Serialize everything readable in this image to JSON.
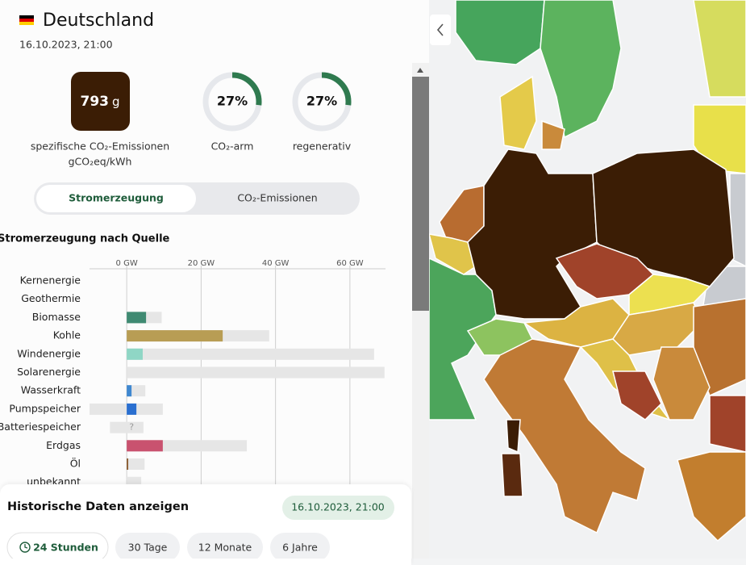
{
  "header": {
    "title": "Deutschland",
    "date": "16.10.2023, 21:00"
  },
  "intensity": {
    "value": "793",
    "unit": "g",
    "label": "spezifische CO₂-Emissionen",
    "sublabel": "gCO₂eq/kWh"
  },
  "metrics": [
    {
      "value": 27,
      "value_label": "27%",
      "label": "CO₂-arm"
    },
    {
      "value": 27,
      "value_label": "27%",
      "label": "regenerativ"
    }
  ],
  "tabs": [
    "Stromerzeugung",
    "CO₂-Emissionen"
  ],
  "chart_data": {
    "type": "bar",
    "orientation": "horizontal",
    "title": "Stromerzeugung nach Quelle",
    "categories": [
      "Kernenergie",
      "Geothermie",
      "Biomasse",
      "Kohle",
      "Windenergie",
      "Solarenergie",
      "Wasserkraft",
      "Pumpspeicher",
      "Batteriespeicher",
      "Erdgas",
      "Öl",
      "unbekannt"
    ],
    "production": [
      0,
      0,
      5.2,
      25.8,
      4.3,
      0,
      1.3,
      2.6,
      null,
      9.7,
      0.4,
      null
    ],
    "colors": [
      "#9b8ae0",
      "#a3463f",
      "#3f8a72",
      "#b89d54",
      "#8fd6c5",
      "#f4d03f",
      "#3f88d0",
      "#2a6fd0",
      "#7a7a7a",
      "#c9526f",
      "#8a5a2e",
      "#999999"
    ],
    "capacity": [
      null,
      null,
      9.4,
      38.3,
      66.5,
      69.3,
      5,
      9.7,
      4.5,
      32.3,
      4.8,
      3.9
    ],
    "storage_capacity": [
      null,
      null,
      null,
      null,
      null,
      null,
      null,
      -10,
      -4.5,
      null,
      null,
      null
    ],
    "capacity_color": "#e6e6e6",
    "annotation": {
      "category": "Batteriespeicher",
      "text": "?"
    },
    "xlim": [
      -10,
      70
    ],
    "xticks": [
      {
        "value": 0,
        "label": "0 GW"
      },
      {
        "value": 20,
        "label": "20 GW"
      },
      {
        "value": 40,
        "label": "40 GW"
      },
      {
        "value": 60,
        "label": "60 GW"
      }
    ],
    "grid": true
  },
  "history": {
    "title": "Historische Daten anzeigen",
    "date": "16.10.2023, 21:00",
    "ranges": [
      "24 Stunden",
      "30 Tage",
      "12 Monate",
      "6 Jahre"
    ]
  }
}
